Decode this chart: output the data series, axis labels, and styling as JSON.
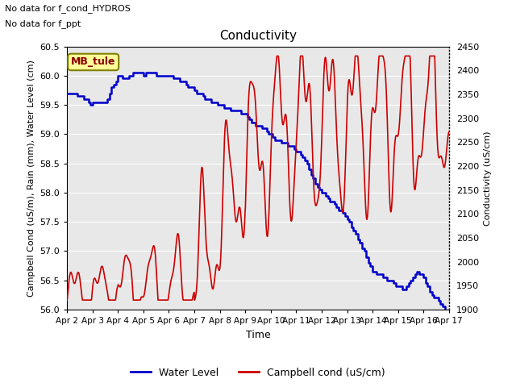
{
  "title": "Conductivity",
  "xlabel": "Time",
  "ylabel_left": "Campbell Cond (uS/m), Rain (mm), Water Level (cm)",
  "ylabel_right": "Conductivity (uS/cm)",
  "top_ann1": "No data for f_cond_HYDROS",
  "top_ann2": "No data for f_ppt",
  "box_label": "MB_tule",
  "ylim_left": [
    56.0,
    60.5
  ],
  "ylim_right": [
    1900,
    2450
  ],
  "yticks_left": [
    56.0,
    56.5,
    57.0,
    57.5,
    58.0,
    58.5,
    59.0,
    59.5,
    60.0,
    60.5
  ],
  "yticks_right": [
    1900,
    1950,
    2000,
    2050,
    2100,
    2150,
    2200,
    2250,
    2300,
    2350,
    2400,
    2450
  ],
  "xtick_labels": [
    "Apr 2",
    "Apr 3",
    "Apr 4",
    "Apr 5",
    "Apr 6",
    "Apr 7",
    "Apr 8",
    "Apr 9",
    "Apr 10",
    "Apr 11",
    "Apr 12",
    "Apr 13",
    "Apr 14",
    "Apr 15",
    "Apr 16",
    "Apr 17"
  ],
  "bg_color": "#e8e8e8",
  "grid_color": "#ffffff",
  "legend_blue_label": "Water Level",
  "legend_red_label": "Campbell cond (uS/cm)",
  "water_level_color": "#0000cc",
  "campbell_color": "#cc0000",
  "n_days": 15
}
